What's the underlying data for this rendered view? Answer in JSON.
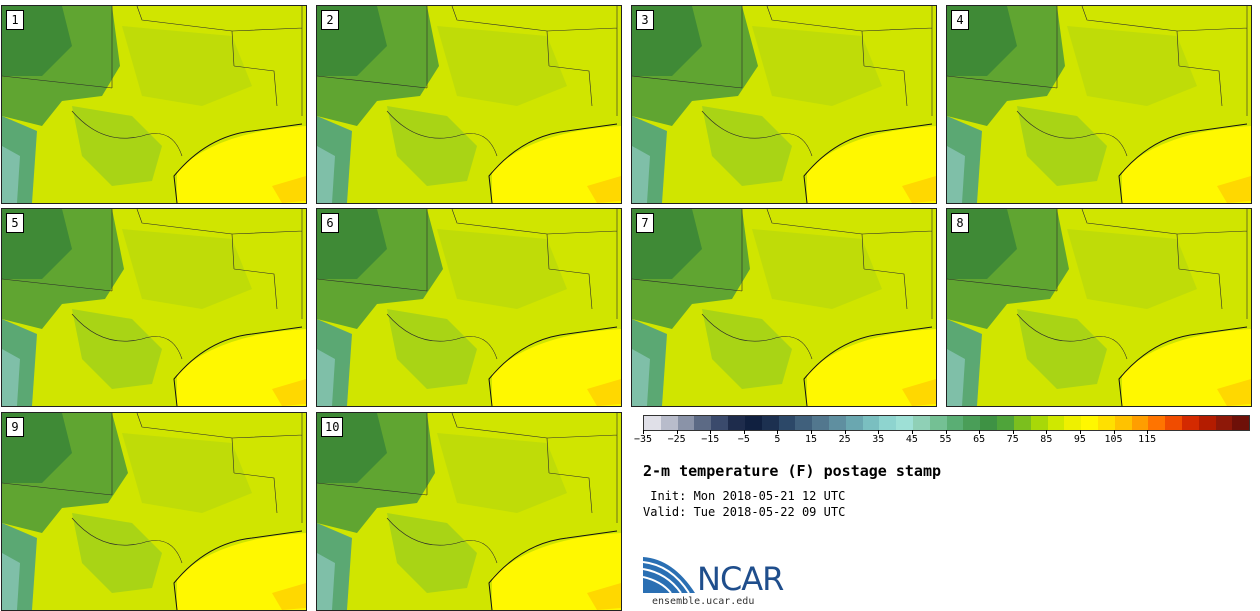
{
  "panels": [
    {
      "label": "1"
    },
    {
      "label": "2"
    },
    {
      "label": "3"
    },
    {
      "label": "4"
    },
    {
      "label": "5"
    },
    {
      "label": "6"
    },
    {
      "label": "7"
    },
    {
      "label": "8"
    },
    {
      "label": "9"
    },
    {
      "label": "10"
    }
  ],
  "colorbar": {
    "colors": [
      "#e0e0e8",
      "#b8bccb",
      "#8a93a8",
      "#5c6a85",
      "#3a4a6c",
      "#1e2c4c",
      "#102040",
      "#1c3050",
      "#2c4868",
      "#40607c",
      "#52778e",
      "#5f8fa0",
      "#6aa7b0",
      "#7abfc0",
      "#8ed4cf",
      "#9ee0d6",
      "#8fd0b6",
      "#74c094",
      "#5aae74",
      "#4a9e58",
      "#3e9244",
      "#4fa43a",
      "#7bbf1e",
      "#a8d808",
      "#cfe800",
      "#eef000",
      "#fff700",
      "#ffe000",
      "#ffc200",
      "#ff9e00",
      "#ff7400",
      "#f04c00",
      "#d42a00",
      "#b41c00",
      "#8e1808",
      "#6e1008"
    ],
    "ticks": [
      "−35",
      "−25",
      "−15",
      "−5",
      "5",
      "15",
      "25",
      "35",
      "45",
      "55",
      "65",
      "75",
      "85",
      "95",
      "105",
      "115"
    ]
  },
  "title": "2-m temperature (F) postage stamp",
  "init_text": " Init: Mon 2018-05-21 12 UTC",
  "valid_text": "Valid: Tue 2018-05-22 09 UTC",
  "logo_text": "NCAR",
  "website": "ensemble.ucar.edu"
}
